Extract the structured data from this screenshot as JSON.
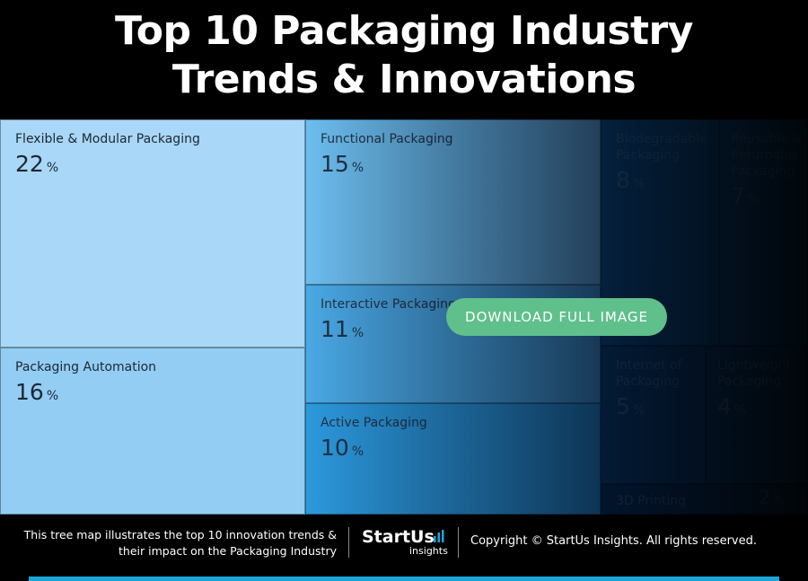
{
  "title_line1": "Top 10 Packaging Industry",
  "title_line2": "Trends & Innovations",
  "download_label": "DOWNLOAD FULL IMAGE",
  "footer": {
    "caption_line1": "This tree map illustrates the top 10 innovation trends &",
    "caption_line2": "their impact on the Packaging Industry",
    "logo": "StartUs",
    "logo_sub": "insights",
    "copyright": "Copyright © StartUs Insights. All rights reserved."
  },
  "chart_data": {
    "type": "treemap",
    "unit": "%",
    "items": [
      {
        "label": "Flexible & Modular Packaging",
        "value": 22
      },
      {
        "label": "Packaging Automation",
        "value": 16
      },
      {
        "label": "Functional Packaging",
        "value": 15
      },
      {
        "label": "Interactive Packaging",
        "value": 11
      },
      {
        "label": "Active Packaging",
        "value": 10
      },
      {
        "label": "Biodegradable Packaging",
        "value": 8
      },
      {
        "label": "Reusable & Returnable Packaging",
        "value": 7
      },
      {
        "label": "Internet of Packaging",
        "value": 5
      },
      {
        "label": "Lightweight Packaging",
        "value": 4
      },
      {
        "label": "3D Printing",
        "value": 2
      }
    ],
    "colors": [
      "#a8d6f6",
      "#92cdf3",
      "#6fbeee",
      "#4aa9e6",
      "#2b98dc",
      "#0d5e95",
      "#0d5e95",
      "#0a4c7d",
      "#0a4c7d",
      "#08385f"
    ]
  }
}
